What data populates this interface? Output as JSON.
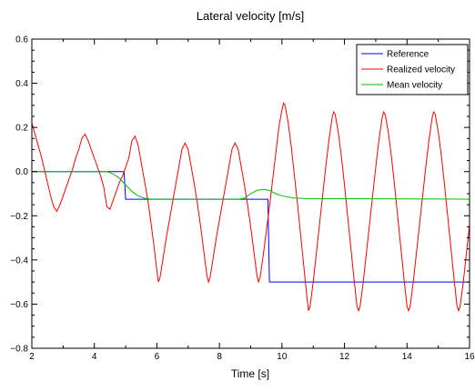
{
  "chart_data": {
    "type": "line",
    "title": "Lateral velocity [m/s]",
    "xlabel": "Time [s]",
    "ylabel": "",
    "xlim": [
      2,
      16
    ],
    "ylim": [
      -0.8,
      0.6
    ],
    "x_ticks": [
      2,
      4,
      6,
      8,
      10,
      12,
      14,
      16
    ],
    "x_tick_labels": [
      "2",
      "4",
      "6",
      "8",
      "10",
      "12",
      "14",
      "16"
    ],
    "y_ticks": [
      -0.8,
      -0.6,
      -0.4,
      -0.2,
      0.0,
      0.2,
      0.4,
      0.6
    ],
    "y_tick_labels": [
      "−0.8",
      "−0.6",
      "−0.4",
      "−0.2",
      "0.0",
      "0.2",
      "0.4",
      "0.6"
    ],
    "grid": false,
    "legend_position": "top-right",
    "series": [
      {
        "name": "Reference",
        "color": "#0000ff",
        "points": [
          [
            2,
            0.0
          ],
          [
            4.95,
            0.0
          ],
          [
            5.0,
            -0.125
          ],
          [
            9.55,
            -0.125
          ],
          [
            9.6,
            -0.5
          ],
          [
            16,
            -0.5
          ]
        ]
      },
      {
        "name": "Realized velocity",
        "color": "#ff0000",
        "points": [
          [
            2.0,
            0.22
          ],
          [
            2.1,
            0.17
          ],
          [
            2.2,
            0.12
          ],
          [
            2.3,
            0.07
          ],
          [
            2.4,
            0.01
          ],
          [
            2.5,
            -0.05
          ],
          [
            2.6,
            -0.11
          ],
          [
            2.7,
            -0.16
          ],
          [
            2.8,
            -0.18
          ],
          [
            2.9,
            -0.15
          ],
          [
            3.0,
            -0.11
          ],
          [
            3.1,
            -0.07
          ],
          [
            3.2,
            -0.03
          ],
          [
            3.3,
            0.01
          ],
          [
            3.4,
            0.06
          ],
          [
            3.5,
            0.1
          ],
          [
            3.6,
            0.15
          ],
          [
            3.7,
            0.17
          ],
          [
            3.8,
            0.14
          ],
          [
            3.9,
            0.1
          ],
          [
            4.0,
            0.06
          ],
          [
            4.1,
            0.02
          ],
          [
            4.2,
            -0.02
          ],
          [
            4.3,
            -0.07
          ],
          [
            4.4,
            -0.16
          ],
          [
            4.5,
            -0.17
          ],
          [
            4.6,
            -0.13
          ],
          [
            4.7,
            -0.09
          ],
          [
            4.8,
            -0.05
          ],
          [
            4.9,
            -0.02
          ],
          [
            5.0,
            0.02
          ],
          [
            5.1,
            0.06
          ],
          [
            5.2,
            0.14
          ],
          [
            5.3,
            0.16
          ],
          [
            5.4,
            0.12
          ],
          [
            5.5,
            0.04
          ],
          [
            5.6,
            -0.04
          ],
          [
            5.7,
            -0.12
          ],
          [
            5.8,
            -0.22
          ],
          [
            5.9,
            -0.33
          ],
          [
            6.0,
            -0.45
          ],
          [
            6.05,
            -0.5
          ],
          [
            6.1,
            -0.48
          ],
          [
            6.2,
            -0.39
          ],
          [
            6.3,
            -0.3
          ],
          [
            6.4,
            -0.22
          ],
          [
            6.5,
            -0.14
          ],
          [
            6.6,
            -0.06
          ],
          [
            6.7,
            0.02
          ],
          [
            6.8,
            0.1
          ],
          [
            6.9,
            0.13
          ],
          [
            7.0,
            0.1
          ],
          [
            7.1,
            0.02
          ],
          [
            7.2,
            -0.06
          ],
          [
            7.3,
            -0.15
          ],
          [
            7.4,
            -0.25
          ],
          [
            7.5,
            -0.36
          ],
          [
            7.6,
            -0.47
          ],
          [
            7.65,
            -0.5
          ],
          [
            7.7,
            -0.48
          ],
          [
            7.8,
            -0.39
          ],
          [
            7.9,
            -0.3
          ],
          [
            8.0,
            -0.22
          ],
          [
            8.1,
            -0.14
          ],
          [
            8.2,
            -0.06
          ],
          [
            8.3,
            0.02
          ],
          [
            8.4,
            0.1
          ],
          [
            8.5,
            0.13
          ],
          [
            8.6,
            0.1
          ],
          [
            8.7,
            0.02
          ],
          [
            8.8,
            -0.06
          ],
          [
            8.9,
            -0.15
          ],
          [
            9.0,
            -0.25
          ],
          [
            9.1,
            -0.36
          ],
          [
            9.2,
            -0.47
          ],
          [
            9.25,
            -0.5
          ],
          [
            9.3,
            -0.48
          ],
          [
            9.4,
            -0.38
          ],
          [
            9.5,
            -0.27
          ],
          [
            9.6,
            -0.16
          ],
          [
            9.7,
            -0.04
          ],
          [
            9.8,
            0.08
          ],
          [
            9.9,
            0.2
          ],
          [
            10.0,
            0.28
          ],
          [
            10.05,
            0.31
          ],
          [
            10.1,
            0.3
          ],
          [
            10.2,
            0.22
          ],
          [
            10.3,
            0.11
          ],
          [
            10.4,
            -0.02
          ],
          [
            10.5,
            -0.15
          ],
          [
            10.6,
            -0.29
          ],
          [
            10.7,
            -0.43
          ],
          [
            10.8,
            -0.57
          ],
          [
            10.85,
            -0.63
          ],
          [
            10.9,
            -0.61
          ],
          [
            11.0,
            -0.5
          ],
          [
            11.1,
            -0.37
          ],
          [
            11.2,
            -0.24
          ],
          [
            11.3,
            -0.11
          ],
          [
            11.4,
            0.02
          ],
          [
            11.5,
            0.14
          ],
          [
            11.6,
            0.24
          ],
          [
            11.65,
            0.27
          ],
          [
            11.7,
            0.26
          ],
          [
            11.8,
            0.18
          ],
          [
            11.9,
            0.07
          ],
          [
            12.0,
            -0.06
          ],
          [
            12.1,
            -0.2
          ],
          [
            12.2,
            -0.34
          ],
          [
            12.3,
            -0.48
          ],
          [
            12.4,
            -0.61
          ],
          [
            12.45,
            -0.63
          ],
          [
            12.5,
            -0.61
          ],
          [
            12.6,
            -0.5
          ],
          [
            12.7,
            -0.37
          ],
          [
            12.8,
            -0.24
          ],
          [
            12.9,
            -0.11
          ],
          [
            13.0,
            0.02
          ],
          [
            13.1,
            0.14
          ],
          [
            13.2,
            0.24
          ],
          [
            13.25,
            0.27
          ],
          [
            13.3,
            0.26
          ],
          [
            13.4,
            0.18
          ],
          [
            13.5,
            0.07
          ],
          [
            13.6,
            -0.06
          ],
          [
            13.7,
            -0.2
          ],
          [
            13.8,
            -0.34
          ],
          [
            13.9,
            -0.48
          ],
          [
            14.0,
            -0.61
          ],
          [
            14.05,
            -0.63
          ],
          [
            14.1,
            -0.61
          ],
          [
            14.2,
            -0.5
          ],
          [
            14.3,
            -0.37
          ],
          [
            14.4,
            -0.24
          ],
          [
            14.5,
            -0.11
          ],
          [
            14.6,
            0.02
          ],
          [
            14.7,
            0.14
          ],
          [
            14.8,
            0.24
          ],
          [
            14.85,
            0.27
          ],
          [
            14.9,
            0.26
          ],
          [
            15.0,
            0.18
          ],
          [
            15.1,
            0.07
          ],
          [
            15.2,
            -0.06
          ],
          [
            15.3,
            -0.2
          ],
          [
            15.4,
            -0.34
          ],
          [
            15.5,
            -0.48
          ],
          [
            15.6,
            -0.61
          ],
          [
            15.65,
            -0.63
          ],
          [
            15.7,
            -0.61
          ],
          [
            15.8,
            -0.5
          ],
          [
            15.9,
            -0.37
          ],
          [
            16.0,
            -0.24
          ]
        ]
      },
      {
        "name": "Mean velocity",
        "color": "#00c000",
        "points": [
          [
            2.0,
            0.0
          ],
          [
            4.4,
            0.0
          ],
          [
            4.6,
            -0.01
          ],
          [
            4.8,
            -0.03
          ],
          [
            5.0,
            -0.06
          ],
          [
            5.2,
            -0.09
          ],
          [
            5.4,
            -0.11
          ],
          [
            5.6,
            -0.12
          ],
          [
            5.8,
            -0.125
          ],
          [
            8.6,
            -0.125
          ],
          [
            8.8,
            -0.12
          ],
          [
            9.0,
            -0.1
          ],
          [
            9.2,
            -0.085
          ],
          [
            9.4,
            -0.08
          ],
          [
            9.6,
            -0.085
          ],
          [
            9.8,
            -0.1
          ],
          [
            10.0,
            -0.11
          ],
          [
            10.4,
            -0.12
          ],
          [
            10.8,
            -0.122
          ],
          [
            16.0,
            -0.125
          ]
        ]
      }
    ]
  }
}
